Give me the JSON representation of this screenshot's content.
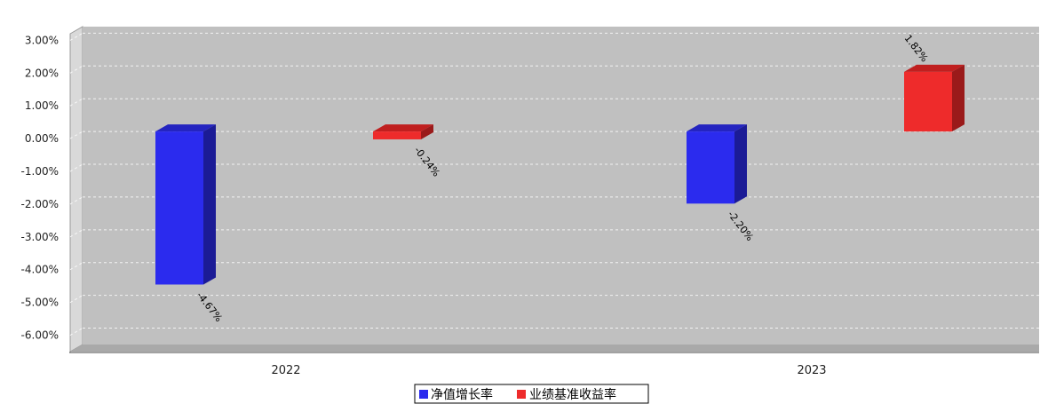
{
  "chart_data": {
    "type": "bar",
    "title": "",
    "xlabel": "",
    "ylabel": "",
    "categories": [
      "2022",
      "2023"
    ],
    "series": [
      {
        "name": "净值增长率",
        "color": "#2b2bee",
        "side_color": "#1b1b96",
        "top_color": "#2424c0",
        "values": [
          -4.67,
          -2.2
        ],
        "labels": [
          "-4.67%",
          "-2.20%"
        ]
      },
      {
        "name": "业绩基准收益率",
        "color": "#ee2b2b",
        "side_color": "#9a1a1a",
        "top_color": "#c01f1f",
        "values": [
          -0.24,
          1.82
        ],
        "labels": [
          "-0.24%",
          "1.82%"
        ]
      }
    ],
    "ylim": [
      -6.5,
      3.2
    ],
    "yticks": [
      3,
      2,
      1,
      0,
      -1,
      -2,
      -3,
      -4,
      -5,
      -6
    ],
    "ytick_labels": [
      "3.00%",
      "2.00%",
      "1.00%",
      "0.00%",
      "-1.00%",
      "-2.00%",
      "-3.00%",
      "-4.00%",
      "-5.00%",
      "-6.00%"
    ],
    "grid": true,
    "legend_position": "bottom-center",
    "background_color": "#c0c0c0"
  }
}
